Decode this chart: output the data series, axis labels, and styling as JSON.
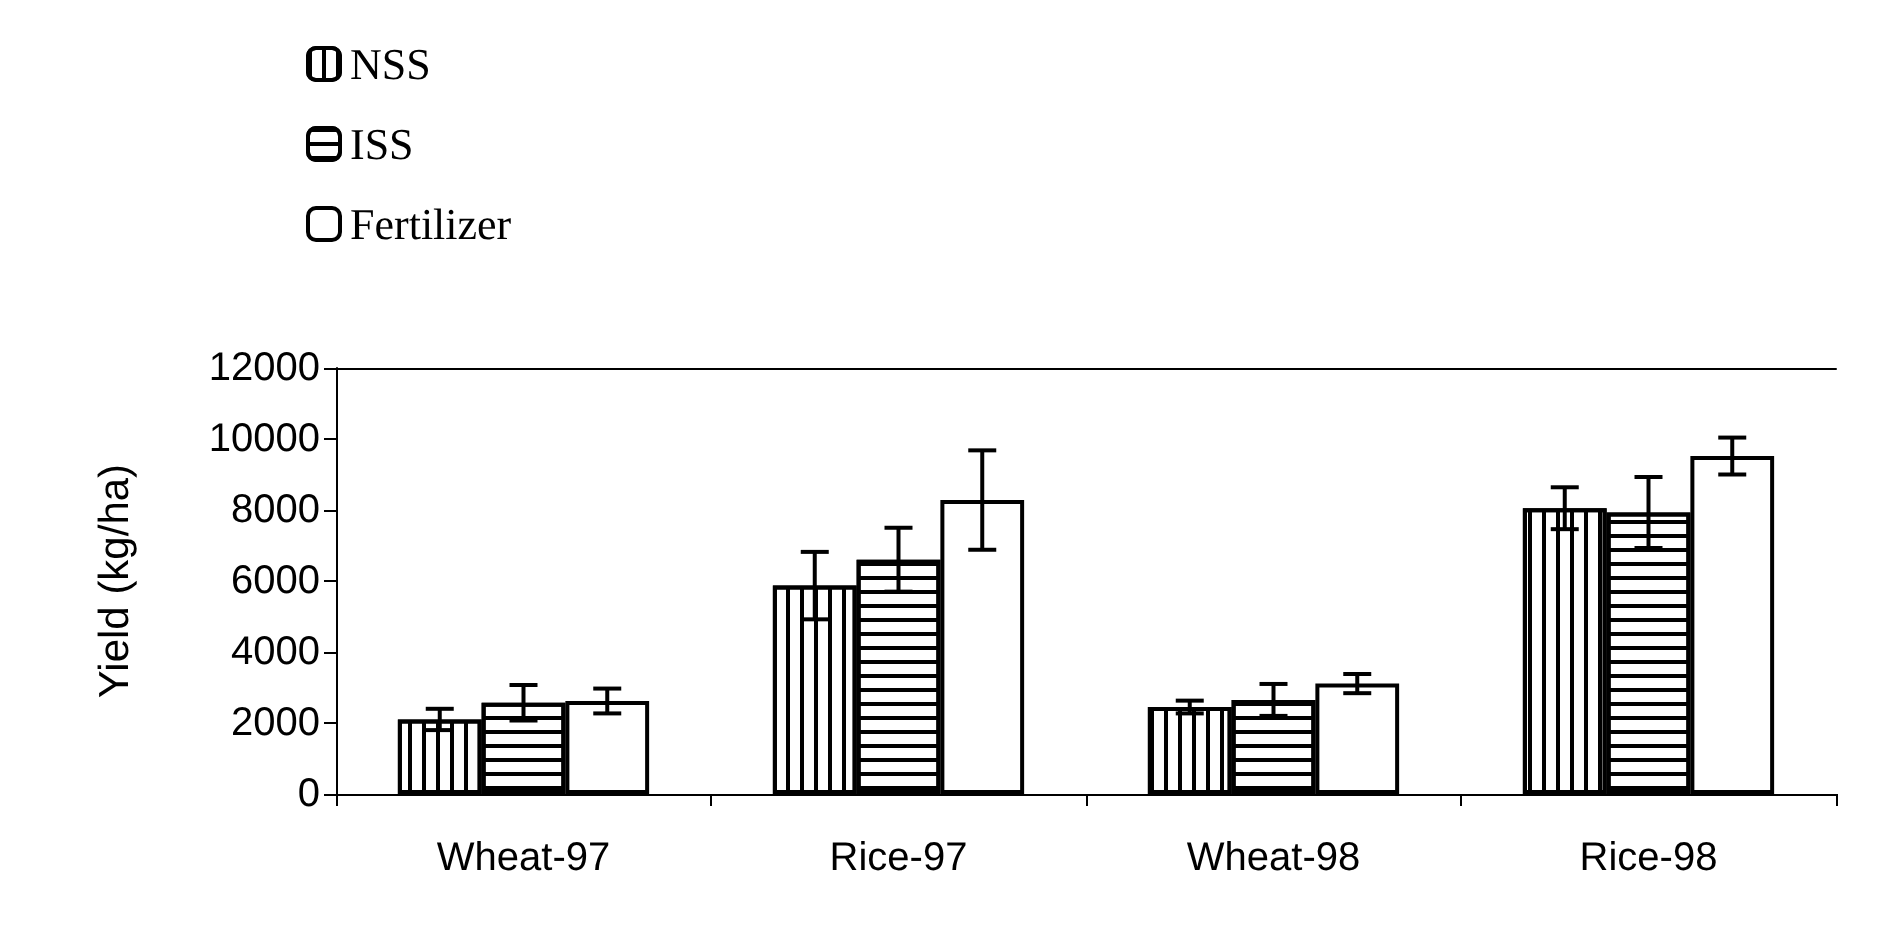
{
  "chart_data": {
    "type": "bar",
    "ylabel": "Yield (kg/ha)",
    "categories": [
      "Wheat-97",
      "Rice-97",
      "Wheat-98",
      "Rice-98"
    ],
    "series": [
      {
        "name": "NSS",
        "color": "#ffffff",
        "values": [
          2100,
          5870,
          2450,
          8050
        ],
        "errors": [
          300,
          950,
          180,
          590
        ]
      },
      {
        "name": "ISS",
        "color": "#ffffff",
        "values": [
          2570,
          6600,
          2650,
          7930
        ],
        "errors": [
          500,
          900,
          450,
          1000
        ]
      },
      {
        "name": "Fertilizer",
        "color": "#ffffff",
        "values": [
          2620,
          8280,
          3110,
          9520
        ],
        "errors": [
          350,
          1400,
          270,
          520
        ]
      }
    ],
    "ylim": [
      0,
      12000
    ],
    "yticks": [
      0,
      2000,
      4000,
      6000,
      8000,
      10000,
      12000
    ],
    "grid": false,
    "legend": "top left"
  }
}
